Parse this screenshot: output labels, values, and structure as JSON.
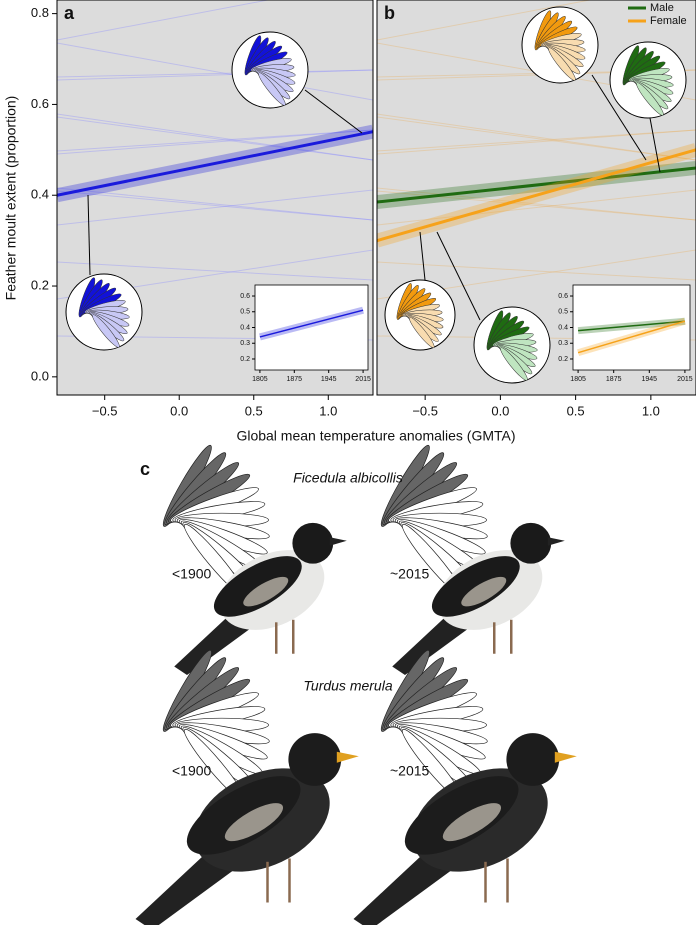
{
  "chart_data": [
    {
      "type": "line",
      "panel_label": "a",
      "y_label": "Feather moult extent (proportion)",
      "x_label": "Global mean temperature anomalies (GMTA)",
      "x": [
        -0.82,
        1.3
      ],
      "series": [
        {
          "color": "#1a1adc",
          "values": [
            0.4,
            0.54
          ]
        }
      ],
      "xlim": [
        -0.82,
        1.3
      ],
      "ylim": [
        -0.04,
        0.83
      ],
      "xticks": [
        {
          "value": -0.5,
          "label": "−0.5"
        },
        {
          "value": 0,
          "label": "0.0"
        },
        {
          "value": 0.5,
          "label": "0.5"
        },
        {
          "value": 1,
          "label": "1.0"
        }
      ],
      "yticks": [
        {
          "value": 0,
          "label": "0.0"
        },
        {
          "value": 0.2,
          "label": "0.2"
        },
        {
          "value": 0.4,
          "label": "0.4"
        },
        {
          "value": 0.6,
          "label": "0.6"
        },
        {
          "value": 0.8,
          "label": "0.8"
        }
      ]
    },
    {
      "type": "line",
      "panel_label": "b",
      "legend": "top-right",
      "x": [
        -0.82,
        1.3
      ],
      "series": [
        {
          "name": "Male",
          "color": "#1f6b12",
          "values": [
            0.385,
            0.46
          ]
        },
        {
          "name": "Female",
          "color": "#f6a21a",
          "values": [
            0.3,
            0.5
          ]
        }
      ],
      "xlim": [
        -0.82,
        1.3
      ],
      "ylim": [
        -0.04,
        0.83
      ],
      "xticks": [
        {
          "value": -0.5,
          "label": "−0.5"
        },
        {
          "value": 0,
          "label": "0.0"
        },
        {
          "value": 0.5,
          "label": "0.5"
        },
        {
          "value": 1,
          "label": "1.0"
        }
      ]
    },
    {
      "type": "line",
      "x": [
        1805,
        2015
      ],
      "series": [
        {
          "color": "#1a1adc",
          "values": [
            0.34,
            0.51
          ]
        }
      ],
      "xlim": [
        1795,
        2025
      ],
      "ylim": [
        0.13,
        0.67
      ],
      "xticks": [
        1805,
        1875,
        1945,
        2015
      ],
      "yticks": [
        0.2,
        0.3,
        0.4,
        0.5,
        0.6
      ]
    },
    {
      "type": "line",
      "x": [
        1805,
        2015
      ],
      "series": [
        {
          "color": "#1f6b12",
          "values": [
            0.38,
            0.44
          ]
        },
        {
          "color": "#f6a21a",
          "values": [
            0.24,
            0.44
          ]
        }
      ],
      "xlim": [
        1795,
        2025
      ],
      "ylim": [
        0.13,
        0.67
      ],
      "xticks": [
        1805,
        1875,
        1945,
        2015
      ],
      "yticks": [
        0.2,
        0.3,
        0.4,
        0.5,
        0.6
      ]
    }
  ],
  "panel_c": {
    "label": "c",
    "species": [
      {
        "name": "Ficedula albicollis",
        "periods": [
          "<1900",
          "~2015"
        ]
      },
      {
        "name": "Turdus merula",
        "periods": [
          "<1900",
          "~2015"
        ]
      }
    ]
  }
}
